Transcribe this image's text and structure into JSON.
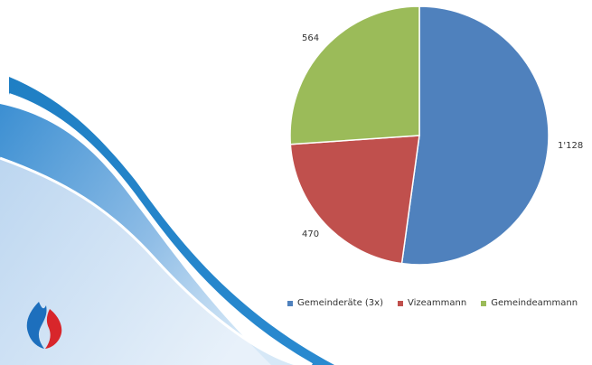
{
  "chart_data": {
    "type": "pie",
    "title": "",
    "categories": [
      "Gemeinderäte (3x)",
      "Vizeammann",
      "Gemeindeammann"
    ],
    "values": [
      1128,
      470,
      564
    ],
    "value_labels": [
      "1'128",
      "470",
      "564"
    ],
    "colors": [
      "#4F81BD",
      "#C0504D",
      "#9BBB59"
    ],
    "legend_position": "bottom",
    "start_angle": "12 o'clock, clockwise"
  },
  "decoration": {
    "logo": "swiss-style flame/shield logo (red and blue)",
    "background": "blue swoosh waves"
  }
}
